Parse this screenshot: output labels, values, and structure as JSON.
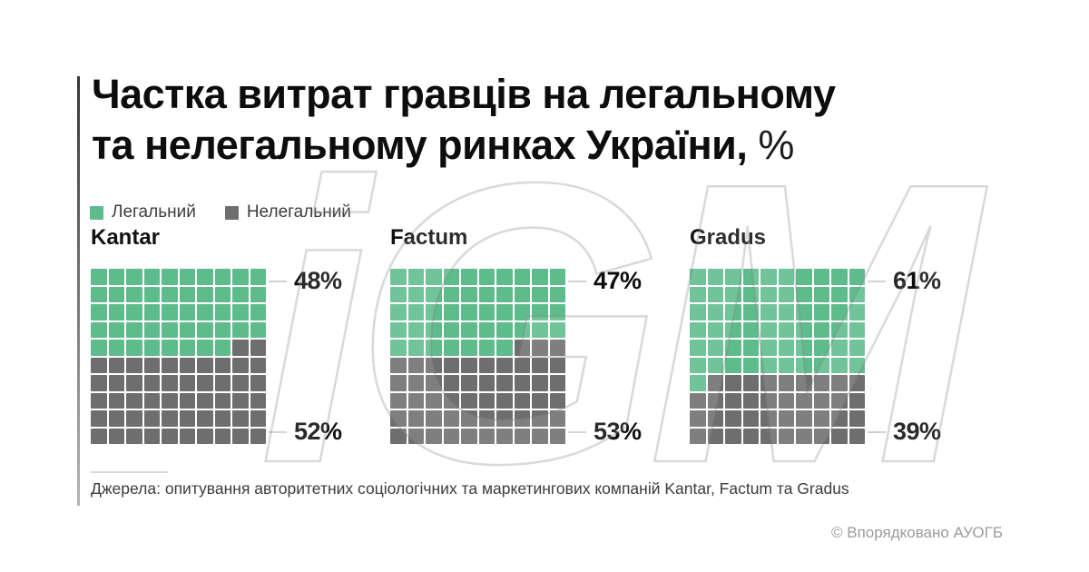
{
  "title": {
    "line1": "Частка витрат гравців на легальному",
    "line2": "та нелегальному ринках України,",
    "percent_suffix": "%"
  },
  "legend": {
    "items": [
      {
        "key": "legal",
        "label": "Легальний",
        "color": "#5ebc8c"
      },
      {
        "key": "illegal",
        "label": "Нелегальний",
        "color": "#6e6e6e"
      }
    ]
  },
  "watermark": {
    "text": "iGM"
  },
  "source": "Джерела: опитування авторитетних соціологічних та маркетингових компаній Kantar, Factum та Gradus",
  "copyright": "© Впорядковано АУОГБ",
  "chart_data": {
    "type": "waffle",
    "title": "Частка витрат гравців на легальному та нелегальному ринках України, %",
    "unit": "%",
    "grid_rows": 10,
    "grid_cols": 10,
    "cell_value": 1,
    "fill_order": "top-left, row by row",
    "legend_position": "top-left",
    "categories": [
      "Kantar",
      "Factum",
      "Gradus"
    ],
    "series": [
      {
        "name": "Легальний",
        "color": "#5ebc8c",
        "values": [
          48,
          47,
          61
        ]
      },
      {
        "name": "Нелегальний",
        "color": "#6e6e6e",
        "values": [
          52,
          53,
          39
        ]
      }
    ],
    "colors": {
      "legal": "#5ebc8c",
      "illegal": "#6e6e6e"
    },
    "charts": [
      {
        "name": "Kantar",
        "legal": 48,
        "illegal": 52,
        "legal_label": "48%",
        "illegal_label": "52%"
      },
      {
        "name": "Factum",
        "legal": 47,
        "illegal": 53,
        "legal_label": "47%",
        "illegal_label": "53%"
      },
      {
        "name": "Gradus",
        "legal": 61,
        "illegal": 39,
        "legal_label": "61%",
        "illegal_label": "39%"
      }
    ]
  }
}
